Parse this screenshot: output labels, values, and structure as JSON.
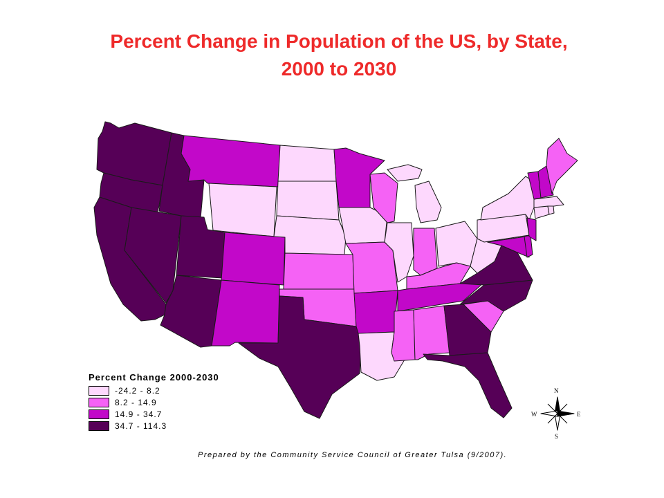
{
  "title_line1": "Percent Change in Population of the US, by State,",
  "title_line2": "2000 to 2030",
  "legend": {
    "title": "Percent Change 2000-2030",
    "classes": [
      {
        "label": "-24.2 - 8.2",
        "color": "#fdd8fd"
      },
      {
        "label": "8.2 - 14.9",
        "color": "#f562f5"
      },
      {
        "label": "14.9 - 34.7",
        "color": "#c208c9"
      },
      {
        "label": "34.7 - 114.3",
        "color": "#560057"
      }
    ]
  },
  "compass": {
    "n": "N",
    "s": "S",
    "e": "E",
    "w": "W"
  },
  "credit": "Prepared by the Community Service Council of Greater Tulsa (9/2007).",
  "state_class": {
    "WA": 3,
    "OR": 3,
    "CA": 3,
    "NV": 3,
    "ID": 3,
    "UT": 3,
    "AZ": 3,
    "TX": 3,
    "GA": 3,
    "FL": 3,
    "NC": 3,
    "VA": 3,
    "MT": 2,
    "CO": 2,
    "NM": 2,
    "MN": 2,
    "AR": 2,
    "TN": 2,
    "DE": 2,
    "MD": 2,
    "NH": 2,
    "VT": 2,
    "NJ": 2,
    "KS": 1,
    "OK": 1,
    "MO": 1,
    "WI": 1,
    "IN": 1,
    "KY": 1,
    "MS": 1,
    "AL": 1,
    "SC": 1,
    "ME": 1,
    "WY": 0,
    "ND": 0,
    "SD": 0,
    "NE": 0,
    "IA": 0,
    "IL": 0,
    "MI": 0,
    "OH": 0,
    "WV": 0,
    "PA": 0,
    "NY": 0,
    "LA": 0,
    "MA": 0,
    "CT": 0,
    "RI": 0
  }
}
